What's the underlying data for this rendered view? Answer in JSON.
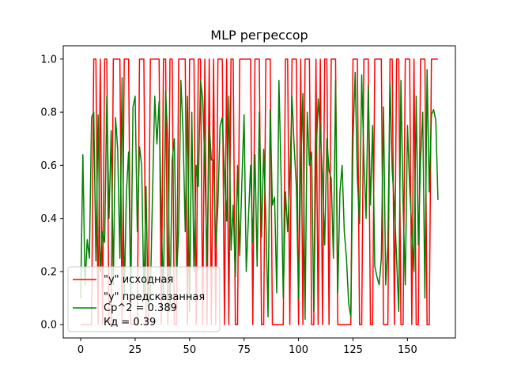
{
  "chart_data": {
    "type": "line",
    "title": "MLP регрессор",
    "xlim": [
      -8,
      172
    ],
    "ylim": [
      -0.05,
      1.05
    ],
    "x_ticks": [
      0,
      25,
      50,
      75,
      100,
      125,
      150
    ],
    "y_ticks": [
      0.0,
      0.2,
      0.4,
      0.6,
      0.8,
      1.0
    ],
    "x_tick_labels": [
      "0",
      "25",
      "50",
      "75",
      "100",
      "125",
      "150"
    ],
    "y_tick_labels": [
      "0.0",
      "0.2",
      "0.4",
      "0.6",
      "0.8",
      "1.0"
    ],
    "legend": {
      "placement": "lower-left",
      "entries": [
        {
          "label": "\"y\" исходная",
          "color": "#ff0000"
        },
        {
          "label": "\"y\" предсказанная",
          "color": "#008000"
        },
        {
          "label": "Ср^2 = 0.389",
          "color": "#008000"
        },
        {
          "label": "Кд = 0.39"
        }
      ]
    },
    "series": [
      {
        "color": "#ff0000",
        "values": [
          0,
          0,
          0,
          0,
          0,
          0,
          1,
          1,
          0,
          1,
          0,
          1,
          1,
          0,
          0,
          1,
          1,
          1,
          1,
          0,
          1,
          1,
          1,
          0,
          0,
          0,
          0,
          1,
          1,
          1,
          0,
          0,
          1,
          1,
          1,
          1,
          1,
          0,
          1,
          1,
          0,
          1,
          1,
          0,
          0,
          1,
          1,
          1,
          1,
          0,
          1,
          1,
          1,
          0,
          1,
          1,
          0,
          1,
          0,
          1,
          0,
          1,
          0,
          1,
          1,
          1,
          0,
          1,
          0,
          1,
          1,
          0,
          0,
          1,
          1,
          1,
          1,
          1,
          1,
          0,
          1,
          1,
          1,
          0,
          0,
          1,
          1,
          1,
          0,
          0,
          0,
          0,
          0,
          0,
          1,
          1,
          0,
          1,
          1,
          1,
          0,
          1,
          0,
          1,
          1,
          1,
          0,
          0,
          1,
          0,
          1,
          0,
          1,
          1,
          0,
          1,
          1,
          1,
          0,
          0,
          0,
          0,
          0,
          0,
          0,
          1,
          1,
          1,
          0,
          0,
          1,
          1,
          1,
          0,
          0,
          1,
          1,
          1,
          1,
          0,
          0,
          0,
          1,
          1,
          0,
          1,
          1,
          0,
          0,
          1,
          1,
          1,
          0,
          1,
          0,
          0,
          1,
          1,
          1,
          0,
          0,
          1,
          1,
          1,
          1
        ]
      },
      {
        "color": "#008000",
        "values": [
          0.1,
          0.64,
          0.15,
          0.32,
          0.25,
          0.78,
          0.8,
          0.24,
          0.79,
          0.2,
          0.35,
          0.31,
          0.86,
          0.4,
          0.73,
          0.15,
          0.78,
          0.66,
          0.25,
          0.93,
          0.1,
          0.5,
          0.65,
          0.1,
          0.82,
          0.86,
          0.35,
          0.67,
          0.6,
          0.1,
          0.52,
          0.05,
          0.12,
          0.5,
          0.86,
          0.68,
          0.84,
          0.4,
          0.1,
          0.88,
          0.68,
          0.05,
          0.62,
          0.7,
          0.18,
          0.36,
          0.92,
          0.72,
          0.35,
          0.86,
          0.05,
          0.8,
          0.2,
          0.6,
          0.52,
          0.92,
          0.85,
          0.6,
          0.23,
          0.75,
          0.62,
          0.62,
          0.29,
          0.45,
          0.75,
          0.78,
          0.56,
          0.39,
          0.86,
          0.28,
          0.45,
          0.18,
          0.6,
          0.26,
          0.54,
          0.79,
          0.2,
          0.4,
          0.6,
          0.31,
          0.64,
          0.22,
          0.8,
          0.33,
          0.66,
          0.4,
          0.03,
          0.81,
          0.45,
          0.48,
          0.12,
          0.92,
          0.55,
          0.1,
          0.5,
          0.35,
          0.55,
          0.86,
          0.67,
          0.52,
          0.1,
          0.58,
          0.87,
          0.02,
          0.8,
          0.6,
          0.65,
          0.05,
          0.62,
          0.85,
          0.73,
          0.55,
          0.3,
          0.7,
          0.58,
          0.55,
          0.25,
          0.92,
          0.12,
          0.5,
          0.6,
          0.35,
          0.25,
          0.08,
          0.03,
          0.7,
          0.95,
          0.55,
          0.38,
          0.94,
          0.62,
          0.4,
          0.9,
          0.45,
          0.75,
          0.22,
          0.18,
          0.15,
          0.25,
          0.82,
          0.15,
          0.3,
          0.91,
          0.58,
          0.45,
          0.25,
          0.05,
          0.92,
          0.45,
          0.15,
          0.75,
          0.52,
          0.36,
          0.2,
          0.86,
          0.3,
          0.62,
          0.8,
          0.1,
          0.96,
          0.5,
          0.79,
          0.81,
          0.77,
          0.47
        ]
      }
    ]
  }
}
